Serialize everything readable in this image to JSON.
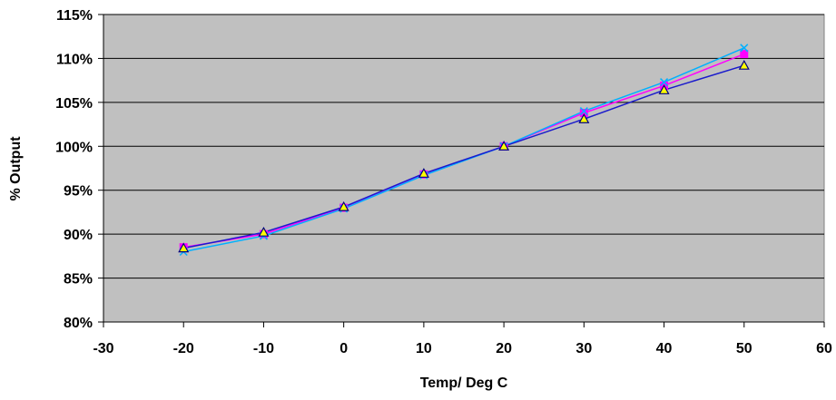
{
  "chart_data": {
    "type": "line",
    "title": "",
    "xlabel": "Temp/ Deg C",
    "ylabel": "% Output",
    "xlim": [
      -30,
      60
    ],
    "ylim": [
      80,
      115
    ],
    "x_ticks": [
      -30,
      -20,
      -10,
      0,
      10,
      20,
      30,
      40,
      50,
      60
    ],
    "y_ticks": [
      80,
      85,
      90,
      95,
      100,
      105,
      110,
      115
    ],
    "y_tick_suffix": "%",
    "grid": "horizontal",
    "plot_background": "#c0c0c0",
    "x": [
      -20,
      -10,
      0,
      10,
      20,
      30,
      40,
      50
    ],
    "series": [
      {
        "color": "#ff00ff",
        "marker": "square",
        "values": [
          88.5,
          90.0,
          93.0,
          96.8,
          100.0,
          103.8,
          106.9,
          110.5
        ]
      },
      {
        "color": "#00b0ff",
        "marker": "x",
        "values": [
          88.0,
          89.8,
          92.9,
          96.7,
          100.0,
          104.0,
          107.3,
          111.2
        ]
      },
      {
        "color": "#1a1acc",
        "marker": "triangle",
        "values": [
          88.4,
          90.2,
          93.1,
          96.9,
          100.0,
          103.1,
          106.4,
          109.2
        ]
      }
    ]
  }
}
